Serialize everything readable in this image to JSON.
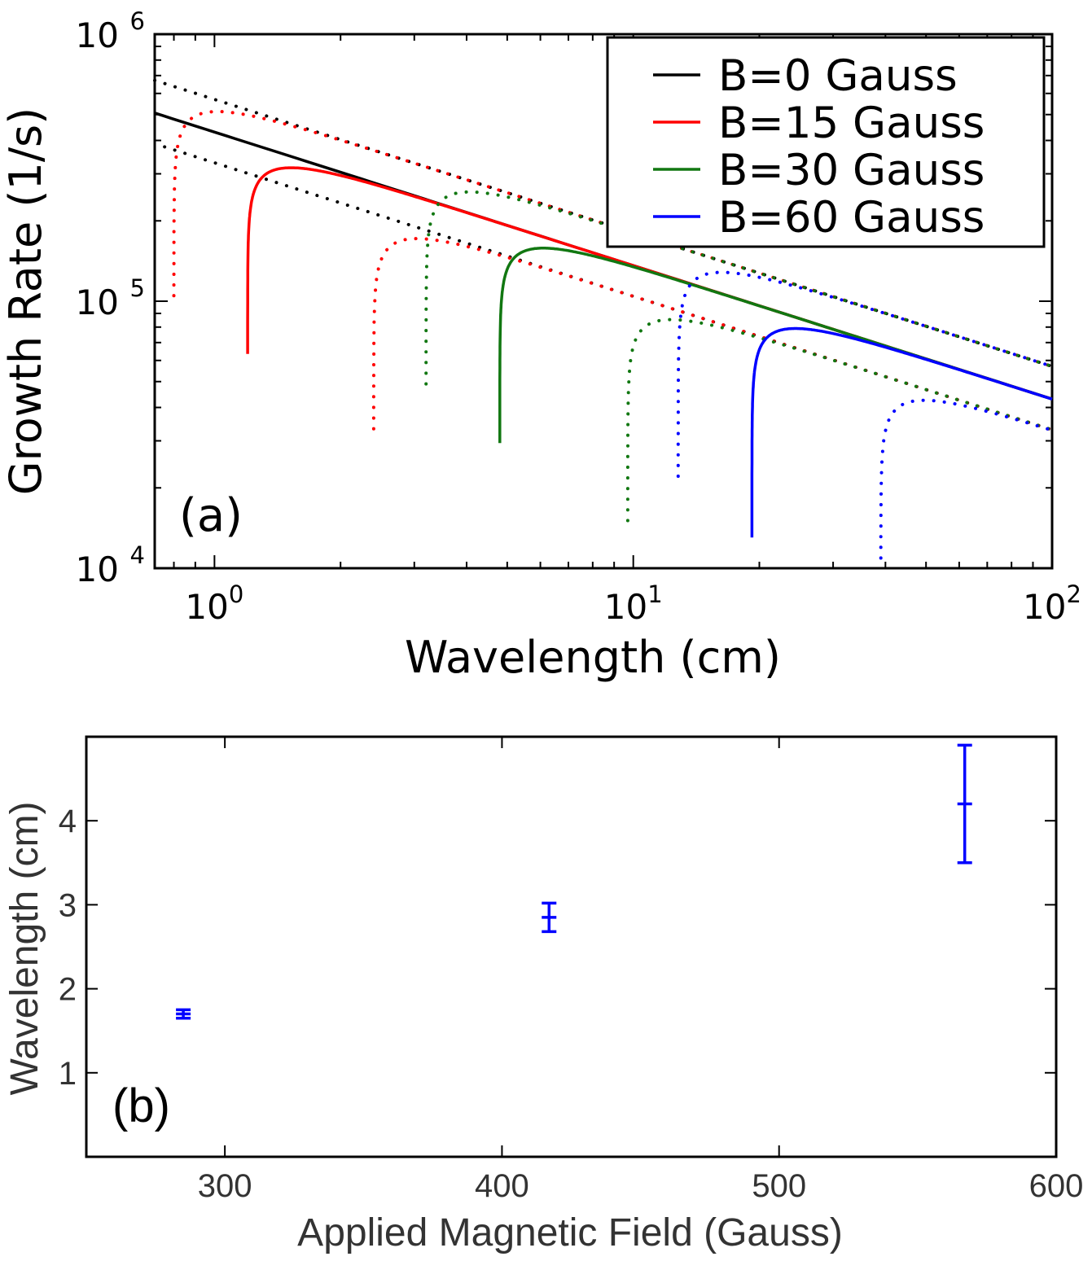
{
  "chart_data": [
    {
      "id": "a",
      "type": "line",
      "scale": "log-log",
      "panel_label": "(a)",
      "xlabel": "Wavelength (cm)",
      "ylabel": "Growth Rate (1/s)",
      "xlim": [
        0.72,
        100
      ],
      "ylim": [
        10000,
        1000000
      ],
      "xticks": [
        {
          "value": 1,
          "base": "10",
          "exp": "0"
        },
        {
          "value": 10,
          "base": "10",
          "exp": "1"
        },
        {
          "value": 100,
          "base": "10",
          "exp": "2"
        }
      ],
      "yticks": [
        {
          "value": 10000,
          "base": "10",
          "exp": "4"
        },
        {
          "value": 100000,
          "base": "10",
          "exp": "5"
        },
        {
          "value": 1000000,
          "base": "10",
          "exp": "6"
        }
      ],
      "legend_position": "top-right",
      "legend": [
        {
          "label": "B=0 Gauss",
          "color": "#000000"
        },
        {
          "label": "B=15 Gauss",
          "color": "#ff0000"
        },
        {
          "label": "B=30 Gauss",
          "color": "#117711"
        },
        {
          "label": "B=60 Gauss",
          "color": "#0000ff"
        }
      ],
      "series": [
        {
          "name": "B=0 Gauss",
          "color": "#000000",
          "style": "solid",
          "kind": "power",
          "A": 430000,
          "p": -0.5,
          "x0": 0.72,
          "x1": 100
        },
        {
          "name": "B=0 Gauss (upper)",
          "color": "#000000",
          "style": "dotted",
          "kind": "power",
          "A": 570000,
          "p": -0.5,
          "x0": 0.72,
          "x1": 100
        },
        {
          "name": "B=0 Gauss (lower)",
          "color": "#000000",
          "style": "dotted",
          "kind": "power",
          "A": 330000,
          "p": -0.5,
          "x0": 0.76,
          "x1": 100
        },
        {
          "name": "B=15 Gauss",
          "color": "#ff0000",
          "style": "solid",
          "kind": "cutoff",
          "A": 430000,
          "p": -0.5,
          "xc": 1.2,
          "x1": 100
        },
        {
          "name": "B=15 Gauss (upper)",
          "color": "#ff0000",
          "style": "dotted",
          "kind": "cutoff",
          "A": 570000,
          "p": -0.5,
          "xc": 0.8,
          "x1": 100
        },
        {
          "name": "B=15 Gauss (lower)",
          "color": "#ff0000",
          "style": "dotted",
          "kind": "cutoff",
          "A": 330000,
          "p": -0.5,
          "xc": 2.4,
          "x1": 100
        },
        {
          "name": "B=30 Gauss",
          "color": "#117711",
          "style": "solid",
          "kind": "cutoff",
          "A": 430000,
          "p": -0.5,
          "xc": 4.8,
          "x1": 100
        },
        {
          "name": "B=30 Gauss (upper)",
          "color": "#117711",
          "style": "dotted",
          "kind": "cutoff",
          "A": 570000,
          "p": -0.5,
          "xc": 3.2,
          "x1": 100
        },
        {
          "name": "B=30 Gauss (lower)",
          "color": "#117711",
          "style": "dotted",
          "kind": "cutoff",
          "A": 330000,
          "p": -0.5,
          "xc": 9.7,
          "x1": 100
        },
        {
          "name": "B=60 Gauss",
          "color": "#0000ff",
          "style": "solid",
          "kind": "cutoff",
          "A": 430000,
          "p": -0.5,
          "xc": 19.2,
          "x1": 100
        },
        {
          "name": "B=60 Gauss (upper)",
          "color": "#0000ff",
          "style": "dotted",
          "kind": "cutoff",
          "A": 570000,
          "p": -0.5,
          "xc": 12.8,
          "x1": 100
        },
        {
          "name": "B=60 Gauss (lower)",
          "color": "#0000ff",
          "style": "dotted",
          "kind": "cutoff",
          "A": 330000,
          "p": -0.5,
          "xc": 39,
          "x1": 100
        }
      ]
    },
    {
      "id": "b",
      "type": "scatter",
      "panel_label": "(b)",
      "xlabel": "Applied Magnetic Field (Gauss)",
      "ylabel": "Wavelength (cm)",
      "xlim": [
        250,
        600
      ],
      "ylim": [
        0,
        5
      ],
      "xticks": [
        300,
        400,
        500,
        600
      ],
      "yticks": [
        1,
        2,
        3,
        4
      ],
      "color": "#0000ff",
      "points": [
        {
          "x": 285,
          "y": 1.7,
          "yerr": 0.05
        },
        {
          "x": 417,
          "y": 2.85,
          "yerr": 0.17
        },
        {
          "x": 567,
          "y": 4.2,
          "yerr": 0.7
        }
      ]
    }
  ]
}
